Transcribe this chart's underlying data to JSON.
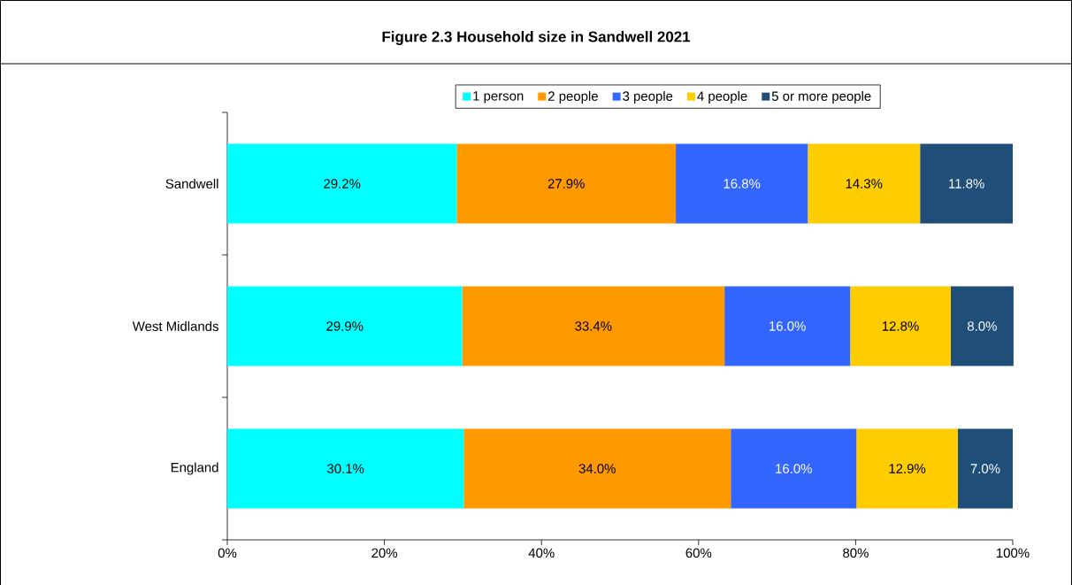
{
  "chart_data": {
    "type": "bar",
    "title": "Figure 2.3 Household size in Sandwell 2021",
    "orientation": "horizontal",
    "stacked": true,
    "categories": [
      "Sandwell",
      "West Midlands",
      "England"
    ],
    "series": [
      {
        "name": "1 person",
        "color": "#00ffff",
        "values": [
          29.2,
          29.9,
          30.1
        ],
        "value_labels": [
          "29.2%",
          "29.9%",
          "30.1%"
        ]
      },
      {
        "name": "2 people",
        "color": "#ff9900",
        "values": [
          27.9,
          33.4,
          34.0
        ],
        "value_labels": [
          "27.9%",
          "33.4%",
          "34.0%"
        ]
      },
      {
        "name": "3 people",
        "color": "#3366ff",
        "values": [
          16.8,
          16.0,
          16.0
        ],
        "value_labels": [
          "16.8%",
          "16.0%",
          "16.0%"
        ]
      },
      {
        "name": "4 people",
        "color": "#ffcc00",
        "values": [
          14.3,
          12.8,
          12.9
        ],
        "value_labels": [
          "14.3%",
          "12.8%",
          "12.9%"
        ]
      },
      {
        "name": "5 or more people",
        "color": "#1f4e79",
        "values": [
          11.8,
          8.0,
          7.0
        ],
        "value_labels": [
          "11.8%",
          "8.0%",
          "7.0%"
        ]
      }
    ],
    "xlim": [
      0,
      100
    ],
    "xticks": [
      {
        "value": 0,
        "label": "0%"
      },
      {
        "value": 20,
        "label": "20%"
      },
      {
        "value": 40,
        "label": "40%"
      },
      {
        "value": 60,
        "label": "60%"
      },
      {
        "value": 80,
        "label": "80%"
      },
      {
        "value": 100,
        "label": "100%"
      }
    ],
    "legend": "top"
  }
}
